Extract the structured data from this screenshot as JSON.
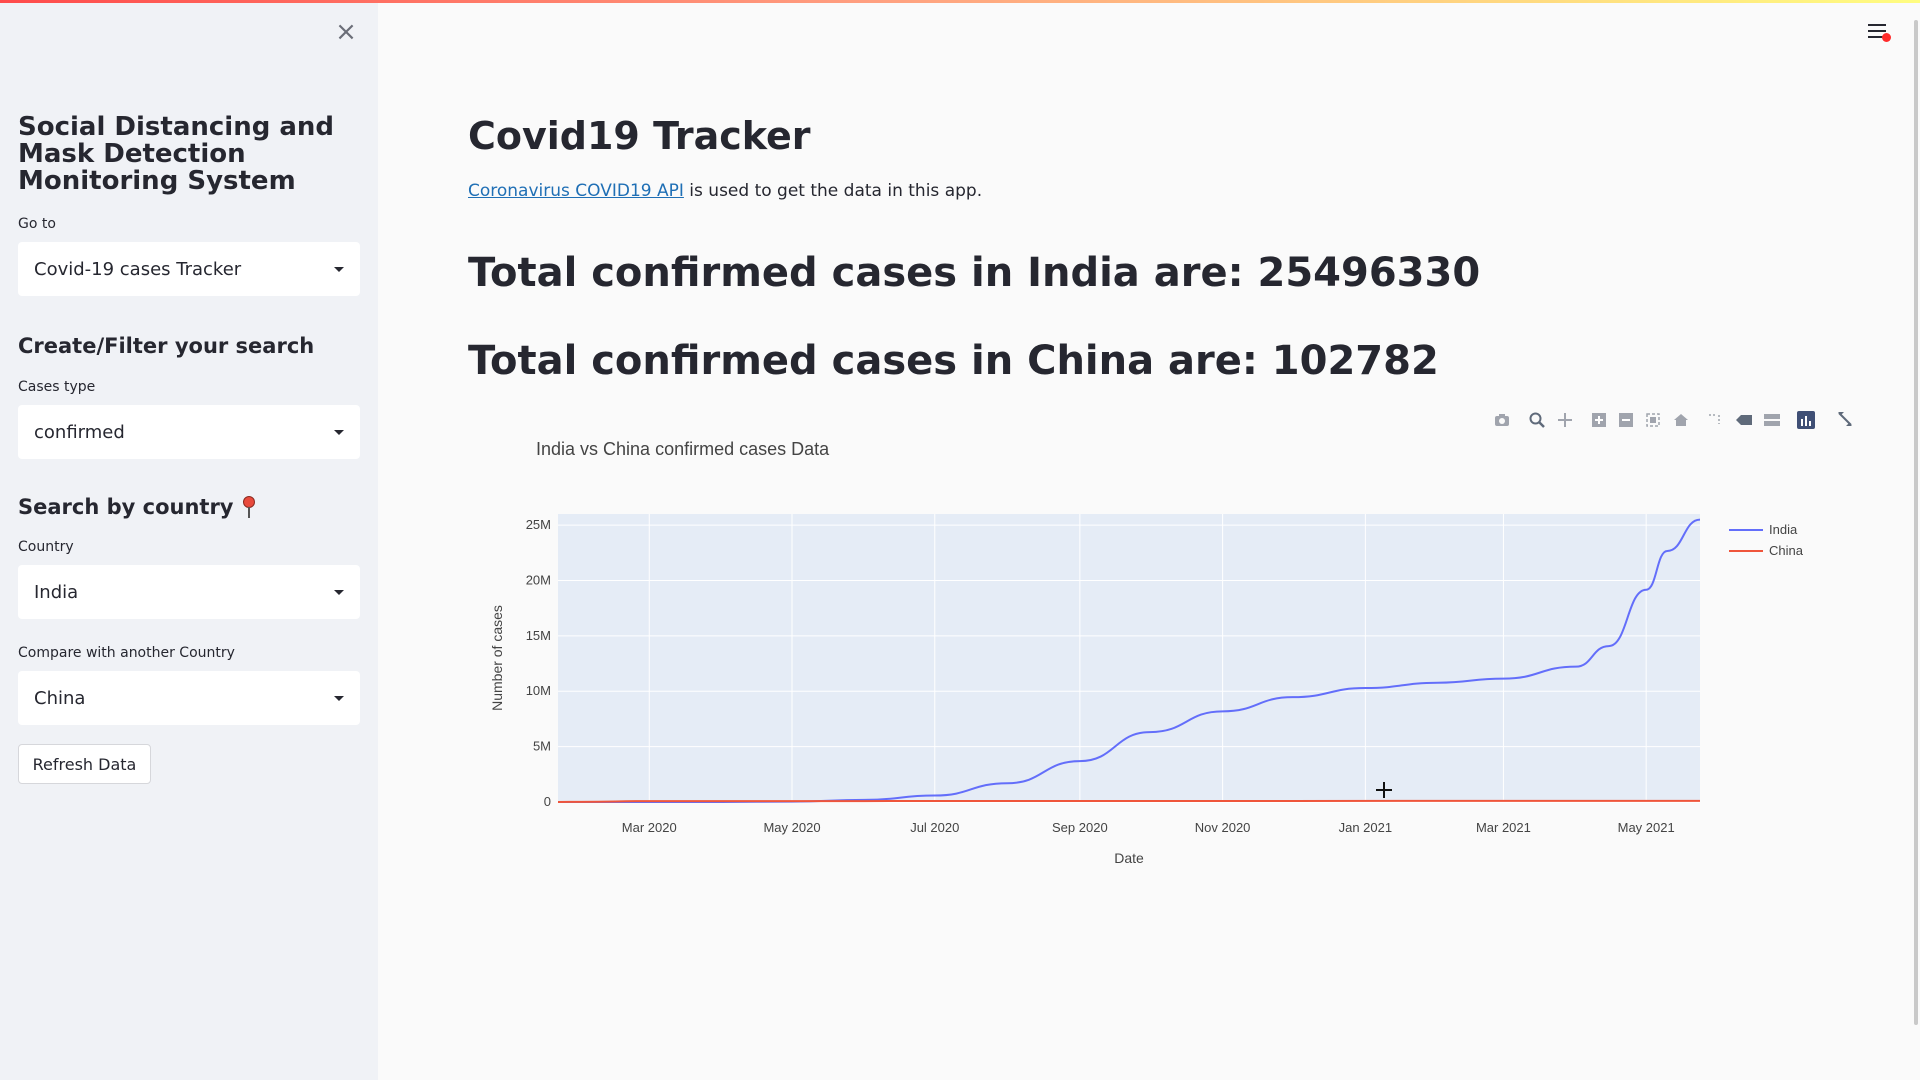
{
  "sidebar": {
    "close_icon": "close-icon",
    "title": "Social Distancing and Mask Detection Monitoring System",
    "goto_label": "Go to",
    "goto_value": "Covid-19 cases Tracker",
    "filter_heading": "Create/Filter your search",
    "cases_type_label": "Cases type",
    "cases_type_value": "confirmed",
    "search_heading": "Search by country",
    "search_icon": "pushpin-icon",
    "country_label": "Country",
    "country_value": "India",
    "compare_label": "Compare with another Country",
    "compare_value": "China",
    "refresh_label": "Refresh Data"
  },
  "main": {
    "title": "Covid19 Tracker",
    "api_link": "Coronavirus COVID19 API",
    "intro_rest": " is used to get the data in this app.",
    "india_total": "Total confirmed cases in India are: 25496330",
    "china_total": "Total confirmed cases in China are: 102782"
  },
  "toolbar_icons": [
    "camera-icon",
    "zoom-icon",
    "pan-icon",
    "zoom-in-icon",
    "zoom-out-icon",
    "autoscale-icon",
    "reset-axes-icon",
    "spike-lines-icon",
    "hover-closest-icon",
    "hover-compare-icon",
    "plotly-logo-icon",
    "fullscreen-icon"
  ],
  "colors": {
    "india": "#636efa",
    "china": "#ef553b",
    "plot_bg": "#e5ecf6",
    "link": "#1f6fb5"
  },
  "chart_data": {
    "type": "line",
    "title": "India vs China confirmed cases Data",
    "xlabel": "Date",
    "ylabel": "Number of cases",
    "x_ticks": [
      "Mar 2020",
      "May 2020",
      "Jul 2020",
      "Sep 2020",
      "Nov 2020",
      "Jan 2021",
      "Mar 2021",
      "May 2021"
    ],
    "y_ticks": [
      "0",
      "5M",
      "10M",
      "15M",
      "20M",
      "25M"
    ],
    "ylim": [
      0,
      26000000
    ],
    "xlim": [
      "2020-01-22",
      "2021-05-24"
    ],
    "grid": true,
    "legend": "top-right",
    "series": [
      {
        "name": "India",
        "x": [
          "2020-01-22",
          "2020-03-01",
          "2020-04-01",
          "2020-05-01",
          "2020-06-01",
          "2020-07-01",
          "2020-08-01",
          "2020-09-01",
          "2020-10-01",
          "2020-11-01",
          "2020-12-01",
          "2021-01-01",
          "2021-02-01",
          "2021-03-01",
          "2021-04-01",
          "2021-04-15",
          "2021-05-01",
          "2021-05-10",
          "2021-05-24"
        ],
        "values": [
          0,
          3,
          1998,
          35043,
          190535,
          585493,
          1695988,
          3691166,
          6312584,
          8184082,
          9462809,
          10286709,
          10766245,
          11139516,
          12221665,
          14074564,
          19164969,
          22662575,
          25496330
        ]
      },
      {
        "name": "China",
        "x": [
          "2020-01-22",
          "2020-02-01",
          "2020-03-01",
          "2020-06-01",
          "2020-09-01",
          "2020-12-01",
          "2021-03-01",
          "2021-05-24"
        ],
        "values": [
          548,
          14380,
          79968,
          84154,
          90966,
          94140,
          101500,
          102782
        ]
      }
    ]
  }
}
